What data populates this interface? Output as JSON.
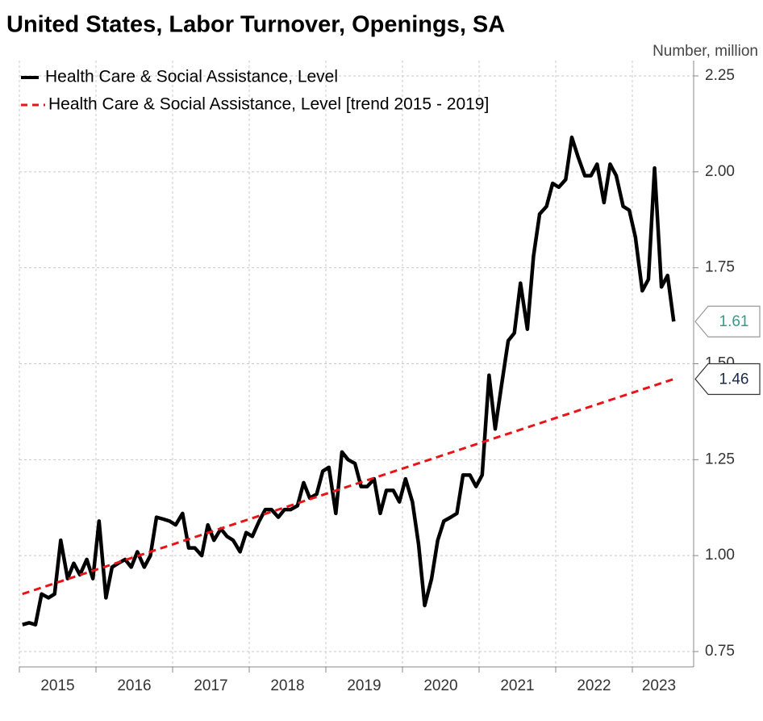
{
  "chart_data": {
    "type": "line",
    "title": "United States, Labor Turnover, Openings, SA",
    "y_unit_label": "Number, million",
    "legend": "upper left",
    "grid": true,
    "xlim": [
      2015,
      2023.8
    ],
    "xticks": [
      2015,
      2016,
      2017,
      2018,
      2019,
      2020,
      2021,
      2022,
      2023
    ],
    "ylim": [
      0.71,
      2.29
    ],
    "yticks": [
      0.75,
      {
        "value": 1,
        "label": "1.00"
      },
      1.25,
      {
        "value": 1.5,
        "label": "1.50"
      },
      1.75,
      {
        "value": 2,
        "label": "2.00"
      },
      2.25
    ],
    "series": [
      {
        "name": "Health Care & Social Assistance, Level",
        "color": "#000000",
        "line_style": "solid",
        "end_label_color": "#3a9a88",
        "x": [
          2015.04,
          2015.13,
          2015.21,
          2015.29,
          2015.38,
          2015.46,
          2015.54,
          2015.63,
          2015.71,
          2015.79,
          2015.88,
          2015.96,
          2016.04,
          2016.13,
          2016.21,
          2016.29,
          2016.38,
          2016.46,
          2016.54,
          2016.63,
          2016.71,
          2016.79,
          2016.88,
          2016.96,
          2017.04,
          2017.13,
          2017.21,
          2017.29,
          2017.38,
          2017.46,
          2017.54,
          2017.63,
          2017.71,
          2017.79,
          2017.88,
          2017.96,
          2018.04,
          2018.13,
          2018.21,
          2018.29,
          2018.38,
          2018.46,
          2018.54,
          2018.63,
          2018.71,
          2018.79,
          2018.88,
          2018.96,
          2019.04,
          2019.13,
          2019.21,
          2019.29,
          2019.38,
          2019.46,
          2019.54,
          2019.63,
          2019.71,
          2019.79,
          2019.88,
          2019.96,
          2020.04,
          2020.13,
          2020.21,
          2020.29,
          2020.38,
          2020.46,
          2020.54,
          2020.63,
          2020.71,
          2020.79,
          2020.88,
          2020.96,
          2021.04,
          2021.13,
          2021.21,
          2021.29,
          2021.38,
          2021.46,
          2021.54,
          2021.63,
          2021.71,
          2021.79,
          2021.88,
          2021.96,
          2022.04,
          2022.13,
          2022.21,
          2022.29,
          2022.38,
          2022.46,
          2022.54,
          2022.63,
          2022.71,
          2022.79,
          2022.88,
          2022.96,
          2023.04,
          2023.13,
          2023.21,
          2023.29,
          2023.38,
          2023.46,
          2023.54
        ],
        "values": [
          0.82,
          0.825,
          0.82,
          0.9,
          0.89,
          0.9,
          1.04,
          0.94,
          0.98,
          0.95,
          0.99,
          0.94,
          1.09,
          0.89,
          0.97,
          0.98,
          0.99,
          0.97,
          1.01,
          0.97,
          1.0,
          1.1,
          1.095,
          1.09,
          1.08,
          1.11,
          1.02,
          1.02,
          1.0,
          1.08,
          1.04,
          1.07,
          1.05,
          1.04,
          1.01,
          1.06,
          1.05,
          1.09,
          1.12,
          1.12,
          1.1,
          1.12,
          1.12,
          1.13,
          1.19,
          1.15,
          1.16,
          1.22,
          1.23,
          1.11,
          1.27,
          1.25,
          1.24,
          1.18,
          1.18,
          1.2,
          1.11,
          1.17,
          1.17,
          1.14,
          1.2,
          1.14,
          1.03,
          0.87,
          0.94,
          1.04,
          1.09,
          1.1,
          1.11,
          1.21,
          1.21,
          1.18,
          1.21,
          1.47,
          1.33,
          1.44,
          1.56,
          1.58,
          1.71,
          1.59,
          1.78,
          1.89,
          1.91,
          1.97,
          1.96,
          1.98,
          2.09,
          2.04,
          1.99,
          1.99,
          2.02,
          1.92,
          2.02,
          1.99,
          1.91,
          1.9,
          1.83,
          1.69,
          1.72,
          2.01,
          1.7,
          1.73,
          1.61
        ]
      },
      {
        "name": "Health Care & Social Assistance, Level [trend 2015 - 2019]",
        "color": "#e8141a",
        "line_style": "dashed",
        "end_label_color": "#1b2a4a",
        "x": [
          2015.04,
          2023.54
        ],
        "values": [
          0.9,
          1.46
        ]
      }
    ]
  }
}
